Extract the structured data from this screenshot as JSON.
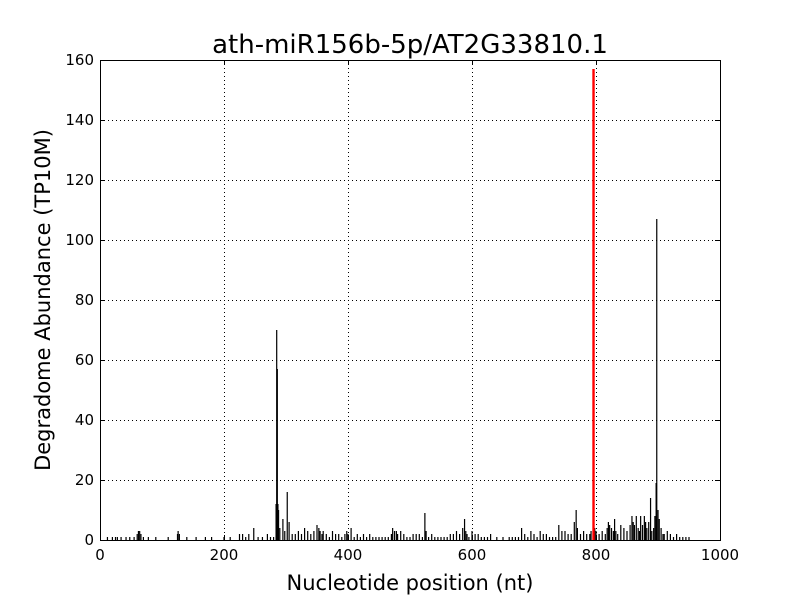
{
  "chart_data": {
    "type": "bar",
    "title": "ath-miR156b-5p/AT2G33810.1",
    "xlabel": "Nucleotide position (nt)",
    "ylabel": "Degradome Abundance (TP10M)",
    "xlim": [
      0,
      1000
    ],
    "ylim": [
      0,
      160
    ],
    "xticks": [
      "0",
      "200",
      "400",
      "600",
      "800",
      "1000"
    ],
    "yticks": [
      "0",
      "20",
      "40",
      "60",
      "80",
      "100",
      "120",
      "140",
      "160"
    ],
    "grid": true,
    "series": [
      {
        "color": "#000000",
        "x": [
          12,
          20,
          25,
          28,
          34,
          42,
          48,
          55,
          60,
          62,
          64,
          66,
          70,
          78,
          90,
          110,
          125,
          126,
          128,
          140,
          155,
          170,
          180,
          200,
          210,
          225,
          230,
          235,
          240,
          248,
          255,
          262,
          270,
          275,
          280,
          284,
          285,
          286,
          287,
          288,
          290,
          295,
          298,
          302,
          305,
          310,
          315,
          320,
          325,
          330,
          335,
          340,
          345,
          350,
          353,
          355,
          358,
          360,
          365,
          370,
          375,
          380,
          385,
          390,
          395,
          398,
          400,
          405,
          410,
          415,
          420,
          425,
          430,
          435,
          440,
          445,
          450,
          455,
          460,
          465,
          470,
          472,
          475,
          478,
          480,
          485,
          490,
          495,
          500,
          505,
          510,
          515,
          520,
          524,
          526,
          530,
          535,
          540,
          545,
          550,
          555,
          560,
          565,
          570,
          575,
          580,
          585,
          588,
          590,
          592,
          595,
          600,
          605,
          610,
          615,
          620,
          625,
          630,
          640,
          650,
          660,
          665,
          670,
          675,
          680,
          685,
          690,
          695,
          700,
          705,
          710,
          715,
          720,
          725,
          730,
          735,
          740,
          745,
          750,
          755,
          760,
          765,
          768,
          770,
          775,
          780,
          785,
          790,
          792,
          798,
          800,
          805,
          810,
          815,
          818,
          820,
          822,
          825,
          828,
          830,
          832,
          835,
          840,
          845,
          850,
          855,
          858,
          860,
          862,
          865,
          868,
          870,
          872,
          875,
          878,
          880,
          882,
          885,
          888,
          890,
          893,
          895,
          897,
          898,
          900,
          902,
          905,
          908,
          910,
          915,
          920,
          925,
          930,
          935,
          940,
          945,
          950
        ],
        "values": [
          1,
          1,
          1,
          1,
          1,
          1,
          1,
          1,
          2,
          3,
          3,
          2,
          1,
          1,
          1,
          1,
          2,
          3,
          2,
          1,
          1,
          1,
          1,
          1,
          1,
          2,
          2,
          1,
          2,
          4,
          1,
          1,
          2,
          1,
          1,
          12,
          70,
          57,
          12,
          10,
          4,
          7,
          3,
          16,
          6,
          2,
          2,
          3,
          2,
          4,
          3,
          2,
          3,
          5,
          4,
          3,
          2,
          3,
          2,
          1,
          3,
          2,
          2,
          1,
          2,
          3,
          2,
          4,
          1,
          2,
          1,
          2,
          1,
          2,
          1,
          1,
          1,
          1,
          1,
          1,
          2,
          4,
          3,
          3,
          2,
          3,
          2,
          1,
          1,
          2,
          2,
          2,
          1,
          9,
          3,
          1,
          2,
          1,
          1,
          1,
          1,
          1,
          2,
          2,
          3,
          2,
          4,
          7,
          3,
          2,
          1,
          3,
          2,
          2,
          1,
          1,
          1,
          2,
          1,
          1,
          1,
          1,
          1,
          1,
          4,
          2,
          1,
          3,
          2,
          1,
          3,
          2,
          2,
          1,
          1,
          1,
          5,
          3,
          3,
          2,
          2,
          6,
          10,
          4,
          2,
          3,
          2,
          2,
          3,
          4,
          3,
          2,
          3,
          2,
          4,
          6,
          5,
          4,
          3,
          7,
          3,
          2,
          5,
          4,
          3,
          5,
          8,
          6,
          5,
          8,
          4,
          3,
          8,
          5,
          8,
          6,
          4,
          6,
          14,
          3,
          4,
          8,
          19,
          107,
          10,
          7,
          4,
          2,
          2,
          3,
          2,
          1,
          2,
          1,
          1,
          1,
          1
        ]
      },
      {
        "color": "#ff0000",
        "x": [
          796
        ],
        "values": [
          157
        ]
      }
    ]
  }
}
